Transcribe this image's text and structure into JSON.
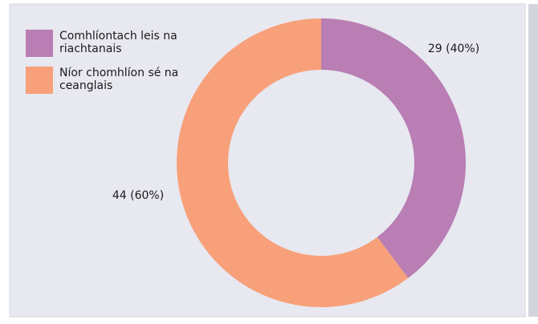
{
  "chart_data": {
    "type": "donut",
    "categories": [
      "Comhlíontach leis na riachtanais",
      "Níor chomhlíon sé na ceanglais"
    ],
    "values": [
      29,
      44
    ],
    "value_labels": [
      "29 (40%)",
      "44 (60%)"
    ],
    "colors": [
      "#b97eb3",
      "#f8a07a"
    ],
    "legend": "top-left"
  }
}
